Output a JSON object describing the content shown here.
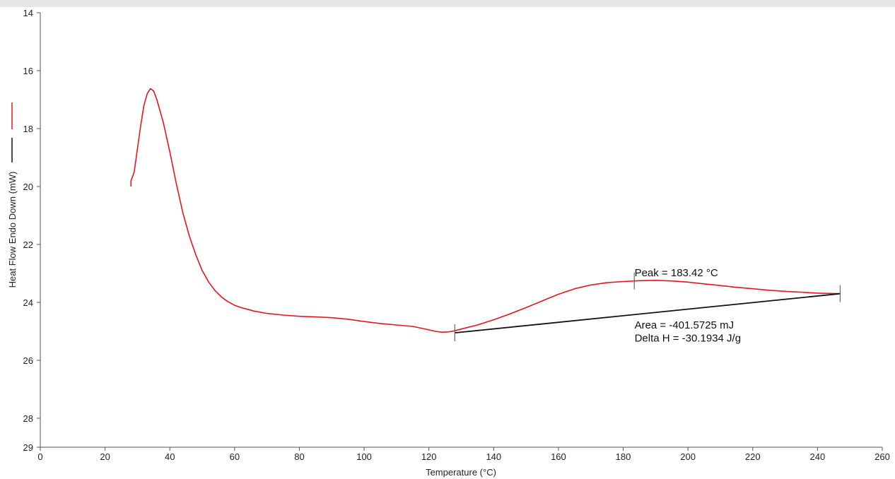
{
  "chart_data": {
    "type": "line",
    "xlabel": "Temperature (°C)",
    "ylabel": "Heat Flow Endo Down (mW)",
    "xlim": [
      0,
      260
    ],
    "ylim": [
      14,
      29
    ],
    "y_inverted": true,
    "grid": false,
    "x_ticks": [
      0,
      20,
      40,
      60,
      80,
      100,
      120,
      140,
      160,
      180,
      200,
      220,
      240,
      260
    ],
    "y_ticks": [
      14,
      16,
      18,
      20,
      22,
      24,
      26,
      28,
      29
    ],
    "legend": {
      "placement": "left-margin",
      "entries": [
        {
          "color": "#e8141c"
        },
        {
          "color": "#111111"
        }
      ]
    },
    "series": [
      {
        "color": "#e8141c",
        "points": [
          [
            28,
            20.0
          ],
          [
            28,
            19.8
          ],
          [
            29,
            19.5
          ],
          [
            30,
            18.7
          ],
          [
            31,
            17.9
          ],
          [
            32,
            17.2
          ],
          [
            33,
            16.8
          ],
          [
            34,
            16.62
          ],
          [
            35,
            16.7
          ],
          [
            36,
            17.0
          ],
          [
            38,
            17.8
          ],
          [
            40,
            18.8
          ],
          [
            42,
            19.9
          ],
          [
            44,
            20.9
          ],
          [
            46,
            21.7
          ],
          [
            48,
            22.35
          ],
          [
            50,
            22.9
          ],
          [
            52,
            23.3
          ],
          [
            54,
            23.6
          ],
          [
            56,
            23.82
          ],
          [
            58,
            23.98
          ],
          [
            60,
            24.1
          ],
          [
            62,
            24.18
          ],
          [
            64,
            24.24
          ],
          [
            66,
            24.3
          ],
          [
            70,
            24.38
          ],
          [
            75,
            24.44
          ],
          [
            80,
            24.48
          ],
          [
            85,
            24.5
          ],
          [
            90,
            24.53
          ],
          [
            95,
            24.58
          ],
          [
            100,
            24.66
          ],
          [
            105,
            24.73
          ],
          [
            110,
            24.78
          ],
          [
            115,
            24.83
          ],
          [
            118,
            24.9
          ],
          [
            120,
            24.95
          ],
          [
            122,
            25.0
          ],
          [
            124,
            25.03
          ],
          [
            126,
            25.02
          ],
          [
            128,
            24.98
          ],
          [
            130,
            24.92
          ],
          [
            135,
            24.78
          ],
          [
            140,
            24.6
          ],
          [
            145,
            24.4
          ],
          [
            150,
            24.18
          ],
          [
            155,
            23.95
          ],
          [
            160,
            23.72
          ],
          [
            165,
            23.53
          ],
          [
            170,
            23.4
          ],
          [
            175,
            23.32
          ],
          [
            180,
            23.28
          ],
          [
            183.42,
            23.26
          ],
          [
            185,
            23.25
          ],
          [
            190,
            23.24
          ],
          [
            195,
            23.26
          ],
          [
            200,
            23.3
          ],
          [
            205,
            23.36
          ],
          [
            210,
            23.42
          ],
          [
            215,
            23.48
          ],
          [
            220,
            23.53
          ],
          [
            225,
            23.58
          ],
          [
            230,
            23.62
          ],
          [
            235,
            23.65
          ],
          [
            240,
            23.68
          ],
          [
            247,
            23.7
          ]
        ]
      },
      {
        "color": "#111111",
        "points": [
          [
            128,
            25.05
          ],
          [
            247,
            23.7
          ]
        ]
      }
    ],
    "markers": [
      {
        "x": 128,
        "y": 25.05
      },
      {
        "x": 183.42,
        "y": 23.26
      },
      {
        "x": 247,
        "y": 23.7
      }
    ],
    "annotations": [
      {
        "text": "Peak = 183.42 °C",
        "x": 183.5,
        "y": 23.1
      },
      {
        "text": "Area = -401.5725 mJ",
        "x": 183.5,
        "y": 24.9
      },
      {
        "text": "Delta H = -30.1934 J/g",
        "x": 183.5,
        "y": 25.35
      }
    ]
  }
}
